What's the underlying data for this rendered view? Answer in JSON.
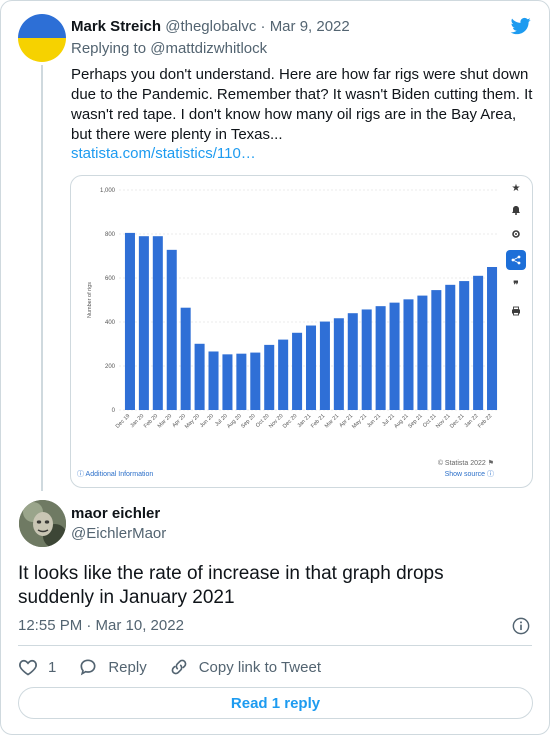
{
  "parent": {
    "name": "Mark Streich",
    "handle": "@theglobalvc",
    "date": "Mar 9, 2022",
    "replying_prefix": "Replying to",
    "replying_handle": "@mattdizwhitlock",
    "text": "Perhaps you don't understand.  Here are how far rigs were shut down due to the Pandemic. Remember that? It wasn't Biden cutting them. It wasn't red tape. I don't know how many oil rigs are in the Bay Area, but there were plenty in Texas...",
    "link": "statista.com/statistics/110…",
    "avatar_colors": [
      "#2d6fd6",
      "#f6d200"
    ]
  },
  "chart_data": {
    "type": "bar",
    "ylabel": "Number of rigs",
    "ylim": [
      0,
      1000
    ],
    "yticks": [
      "1,000",
      "800",
      "600",
      "400",
      "200",
      "0"
    ],
    "categories": [
      "Dec 19",
      "Jan 20",
      "Feb 20",
      "Mar 20",
      "Apr 20",
      "May 20",
      "Jun 20",
      "Jul 20",
      "Aug 20",
      "Sep 20",
      "Oct 20",
      "Nov 20",
      "Dec 20",
      "Jan 21",
      "Feb 21",
      "Mar 21",
      "Apr 21",
      "May 21",
      "Jun 21",
      "Jul 21",
      "Aug 21",
      "Sep 21",
      "Oct 21",
      "Nov 21",
      "Dec 21",
      "Jan 22",
      "Feb 22"
    ],
    "values": [
      805,
      790,
      790,
      728,
      465,
      301,
      266,
      253,
      256,
      261,
      296,
      320,
      351,
      384,
      402,
      417,
      440,
      457,
      472,
      488,
      503,
      520,
      545,
      569,
      586,
      610,
      650
    ],
    "bar_color": "#2f6fd6",
    "grid": true,
    "footer_left": "ⓘ Additional Information",
    "credit": "© Statista 2022 ⚑",
    "source": "Show source ⓘ",
    "side_icons": [
      "star-icon",
      "bell-icon",
      "gear-icon",
      "share-icon",
      "quote-icon",
      "print-icon"
    ]
  },
  "reply": {
    "name": "maor eichler",
    "handle": "@EichlerMaor",
    "text": "It looks like the rate of increase in that graph drops suddenly in January 2021",
    "time": "12:55 PM · Mar 10, 2022"
  },
  "actions": {
    "like_count": "1",
    "reply_label": "Reply",
    "copy_label": "Copy link to Tweet"
  },
  "read_reply": "Read 1 reply",
  "colors": {
    "accent": "#1d9bf0",
    "text": "#0f1419",
    "secondary": "#536471",
    "border": "#cfd9de"
  }
}
